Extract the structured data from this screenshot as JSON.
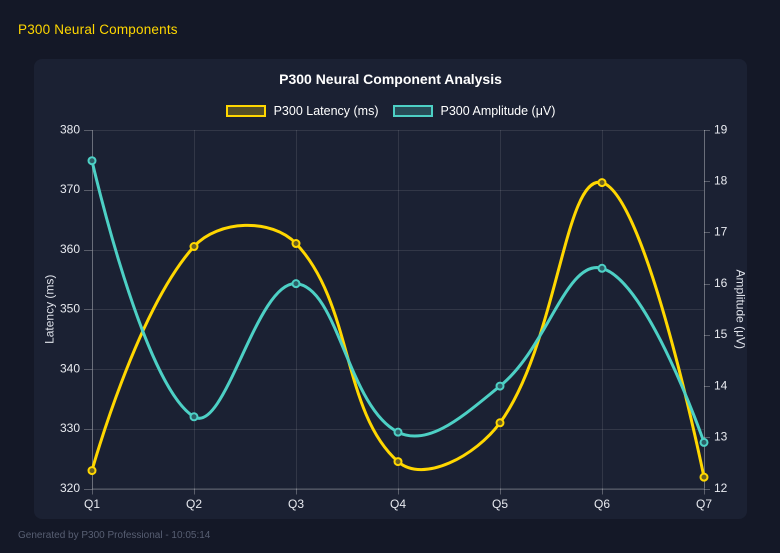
{
  "page": {
    "title": "P300 Neural Components"
  },
  "chart": {
    "title": "P300 Neural Component Analysis"
  },
  "footer": {
    "text": "Generated by P300 Professional - 10:05:14"
  },
  "colors": {
    "accent_yellow": "#FFD700",
    "accent_teal": "#4DD0C5",
    "page_bg": "#141827",
    "card_bg": "#1b2133",
    "grid": "rgba(255,255,255,0.10)",
    "axis_border": "rgba(255,255,255,0.28)",
    "tick_text": "#e8eaf0",
    "axis_title_text": "#dfe2ea"
  },
  "chart_data": {
    "type": "line",
    "categories": [
      "Q1",
      "Q2",
      "Q3",
      "Q4",
      "Q5",
      "Q6",
      "Q7"
    ],
    "series": [
      {
        "name": "P300 Latency (ms)",
        "axis": "left",
        "color": "#FFD700",
        "values": [
          323,
          360.5,
          361,
          324.5,
          331,
          371.2,
          321.9
        ]
      },
      {
        "name": "P300 Amplitude (μV)",
        "axis": "right",
        "color": "#4DD0C5",
        "values": [
          18.4,
          13.4,
          16.0,
          13.1,
          14.0,
          16.3,
          12.9
        ]
      }
    ],
    "left_axis": {
      "label": "Latency (ms)",
      "min": 320,
      "max": 380,
      "step": 10
    },
    "right_axis": {
      "label": "Amplitude (μV)",
      "min": 12,
      "max": 19,
      "step": 1
    },
    "title": "P300 Neural Component Analysis",
    "legend_position": "top",
    "grid": true,
    "smooth": true,
    "tension": 0.4
  }
}
